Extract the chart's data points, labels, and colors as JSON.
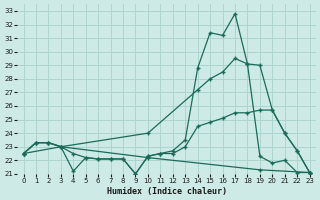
{
  "xlabel": "Humidex (Indice chaleur)",
  "background_color": "#ceeae6",
  "grid_color": "#aed4cf",
  "line_color": "#1a6b5a",
  "xlim": [
    -0.5,
    23.5
  ],
  "ylim": [
    21,
    33.5
  ],
  "xticks": [
    0,
    1,
    2,
    3,
    4,
    5,
    6,
    7,
    8,
    9,
    10,
    11,
    12,
    13,
    14,
    15,
    16,
    17,
    18,
    19,
    20,
    21,
    22,
    23
  ],
  "yticks": [
    21,
    22,
    23,
    24,
    25,
    26,
    27,
    28,
    29,
    30,
    31,
    32,
    33
  ],
  "line1_x": [
    0,
    1,
    2,
    3,
    4,
    5,
    6,
    7,
    8,
    9,
    10,
    11,
    12,
    13,
    14,
    15,
    16,
    17,
    18,
    19,
    20,
    21,
    22,
    23
  ],
  "line1_y": [
    22.5,
    23.3,
    23.3,
    23.0,
    21.2,
    22.2,
    22.1,
    22.1,
    22.1,
    21.0,
    22.3,
    22.5,
    22.7,
    23.5,
    28.8,
    31.4,
    31.2,
    32.8,
    29.1,
    22.3,
    21.8,
    22.0,
    21.1,
    21.1
  ],
  "line2_x": [
    0,
    1,
    2,
    3,
    10,
    14,
    15,
    16,
    17,
    18,
    19,
    20,
    21,
    22,
    23
  ],
  "line2_y": [
    22.5,
    23.3,
    23.3,
    23.0,
    24.0,
    27.2,
    28.0,
    28.5,
    29.5,
    29.1,
    29.0,
    25.7,
    24.0,
    22.7,
    21.1
  ],
  "line3_x": [
    0,
    1,
    2,
    3,
    4,
    5,
    6,
    7,
    8,
    9,
    10,
    11,
    12,
    13,
    14,
    15,
    16,
    17,
    18,
    19,
    20,
    21,
    22,
    23
  ],
  "line3_y": [
    22.5,
    23.3,
    23.3,
    23.0,
    22.5,
    22.2,
    22.1,
    22.1,
    22.1,
    21.0,
    22.3,
    22.5,
    22.5,
    23.0,
    24.5,
    24.8,
    25.1,
    25.5,
    25.5,
    25.7,
    25.7,
    24.0,
    22.7,
    21.1
  ],
  "line4_x": [
    0,
    3,
    10,
    19,
    23
  ],
  "line4_y": [
    22.5,
    23.0,
    22.2,
    21.3,
    21.1
  ]
}
